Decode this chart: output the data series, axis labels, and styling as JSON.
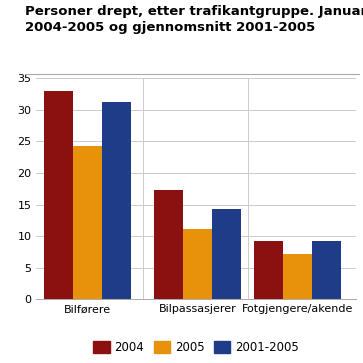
{
  "title_line1": "Personer drept, etter trafikantgruppe. Januar-mars.",
  "title_line2": "2004-2005 og gjennomsnitt 2001-2005",
  "categories": [
    "Bilførere",
    "Bilpassasjerer",
    "Fotgjengere/akende"
  ],
  "series": {
    "2004": [
      33,
      17.3,
      9.3
    ],
    "2005": [
      24.2,
      11.1,
      7.2
    ],
    "2001-2005": [
      31.2,
      14.3,
      9.3
    ]
  },
  "colors": {
    "2004": "#8B1010",
    "2005": "#E8920C",
    "2001-2005": "#1F3C88"
  },
  "legend_labels": [
    "2004",
    "2005",
    "2001-2005"
  ],
  "ylim": [
    0,
    35
  ],
  "yticks": [
    0,
    5,
    10,
    15,
    20,
    25,
    30,
    35
  ],
  "bar_width": 0.18,
  "background_color": "#ffffff",
  "grid_color": "#cccccc",
  "title_fontsize": 9.5,
  "tick_fontsize": 8,
  "legend_fontsize": 8.5
}
